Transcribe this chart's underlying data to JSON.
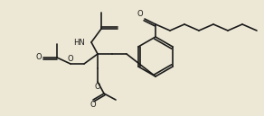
{
  "bg_color": "#ede8d5",
  "line_color": "#1a1a1a",
  "lw": 1.2,
  "figsize": [
    2.92,
    1.29
  ],
  "dpi": 100,
  "xlim": [
    0,
    292
  ],
  "ylim": [
    0,
    129
  ]
}
